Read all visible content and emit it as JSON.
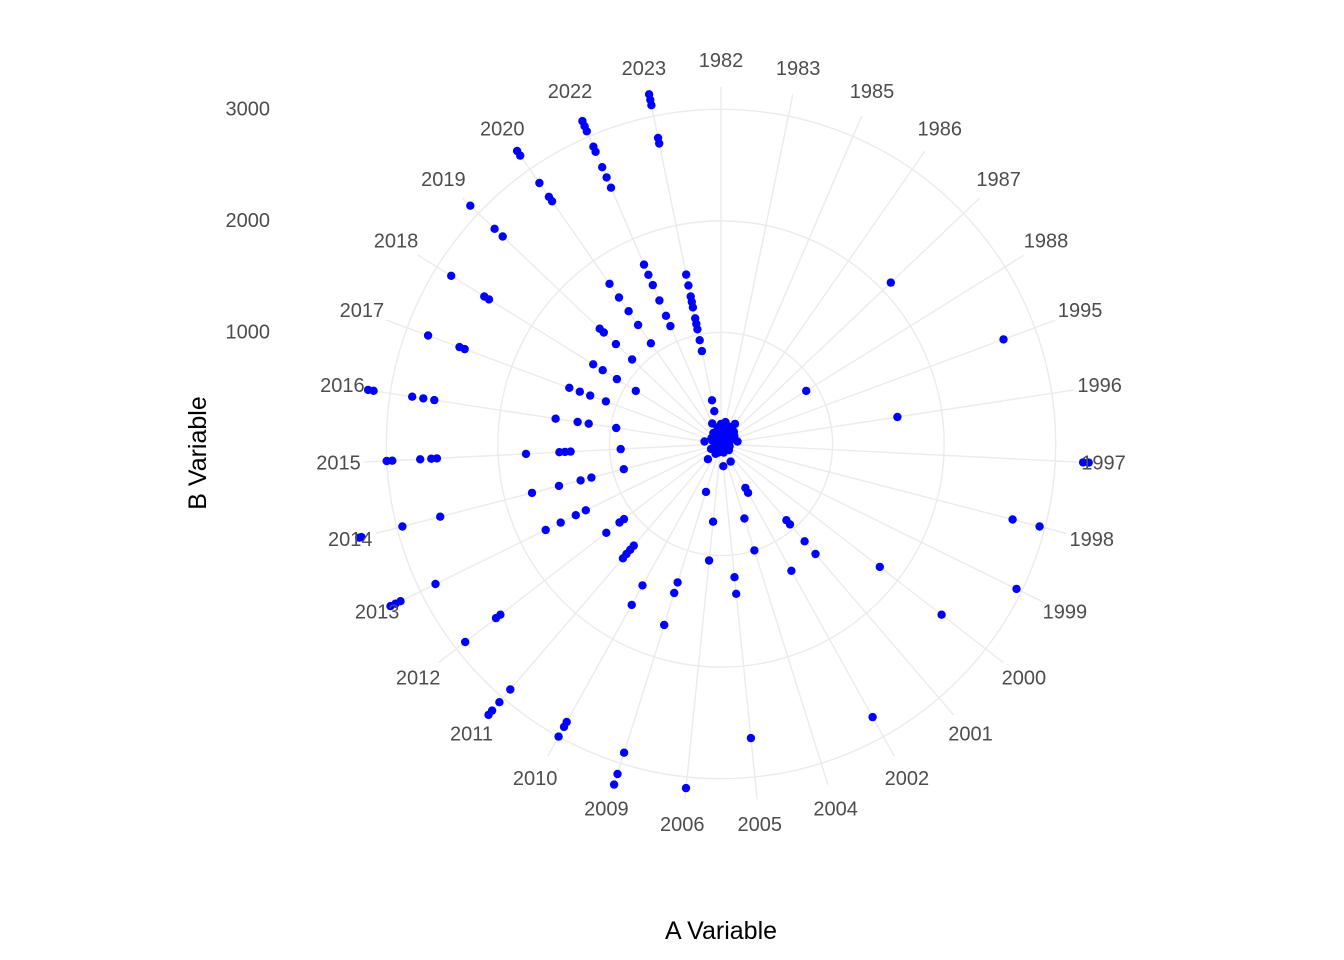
{
  "chart_data": {
    "type": "scatter",
    "coord": "polar",
    "title": "",
    "xlabel": "A Variable",
    "ylabel": "B Variable",
    "r_ticks": [
      1000,
      2000,
      3000
    ],
    "r_max": 3200,
    "grid": true,
    "point_color": "#0000ff",
    "grid_color": "#ebebeb",
    "categories": [
      "1982",
      "1983",
      "1985",
      "1986",
      "1987",
      "1988",
      "1995",
      "1996",
      "1997",
      "1998",
      "1999",
      "2000",
      "2001",
      "2002",
      "2004",
      "2005",
      "2006",
      "2009",
      "2010",
      "2011",
      "2012",
      "2013",
      "2014",
      "2015",
      "2016",
      "2017",
      "2018",
      "2019",
      "2020",
      "2022",
      "2023"
    ],
    "series": [
      {
        "points": [
          [
            "1982",
            50
          ],
          [
            "1982",
            120
          ],
          [
            "1982",
            180
          ],
          [
            "1983",
            60
          ],
          [
            "1983",
            130
          ],
          [
            "1983",
            200
          ],
          [
            "1985",
            40
          ],
          [
            "1985",
            110
          ],
          [
            "1985",
            170
          ],
          [
            "1986",
            80
          ],
          [
            "1986",
            150
          ],
          [
            "1986",
            220
          ],
          [
            "1987",
            2100
          ],
          [
            "1987",
            100
          ],
          [
            "1987",
            160
          ],
          [
            "1988",
            900
          ],
          [
            "1988",
            70
          ],
          [
            "1988",
            140
          ],
          [
            "1995",
            2700
          ],
          [
            "1995",
            30
          ],
          [
            "1995",
            90
          ],
          [
            "1996",
            1600
          ],
          [
            "1996",
            150
          ],
          [
            "1996",
            60
          ],
          [
            "1997",
            3250
          ],
          [
            "1997",
            3300
          ],
          [
            "1997",
            30
          ],
          [
            "1998",
            2700
          ],
          [
            "1998",
            2950
          ],
          [
            "1998",
            80
          ],
          [
            "1999",
            2950
          ],
          [
            "1999",
            30
          ],
          [
            "2000",
            2500
          ],
          [
            "2000",
            1800
          ],
          [
            "2000",
            90
          ],
          [
            "2001",
            950
          ],
          [
            "2001",
            1150
          ],
          [
            "2001",
            900
          ],
          [
            "2001",
            1300
          ],
          [
            "2001",
            30
          ],
          [
            "2002",
            2800
          ],
          [
            "2002",
            1300
          ],
          [
            "2002",
            500
          ],
          [
            "2002",
            450
          ],
          [
            "2002",
            180
          ],
          [
            "2004",
            1000
          ],
          [
            "2004",
            700
          ],
          [
            "2004",
            80
          ],
          [
            "2005",
            2650
          ],
          [
            "2005",
            1200
          ],
          [
            "2005",
            1350
          ],
          [
            "2005",
            200
          ],
          [
            "2005",
            70
          ],
          [
            "2006",
            3100
          ],
          [
            "2006",
            700
          ],
          [
            "2006",
            1050
          ],
          [
            "2006",
            40
          ],
          [
            "2009",
            3200
          ],
          [
            "2009",
            3100
          ],
          [
            "2009",
            2900
          ],
          [
            "2009",
            1400
          ],
          [
            "2009",
            1300
          ],
          [
            "2009",
            1700
          ],
          [
            "2009",
            450
          ],
          [
            "2009",
            80
          ],
          [
            "2010",
            3000
          ],
          [
            "2010",
            2900
          ],
          [
            "2010",
            2850
          ],
          [
            "2010",
            1650
          ],
          [
            "2010",
            1450
          ],
          [
            "2010",
            100
          ],
          [
            "2011",
            3200
          ],
          [
            "2011",
            3150
          ],
          [
            "2011",
            3050
          ],
          [
            "2011",
            2900
          ],
          [
            "2011",
            1250
          ],
          [
            "2011",
            1200
          ],
          [
            "2011",
            1300
          ],
          [
            "2011",
            1350
          ],
          [
            "2011",
            180
          ],
          [
            "2012",
            2900
          ],
          [
            "2012",
            2550
          ],
          [
            "2012",
            2500
          ],
          [
            "2012",
            1100
          ],
          [
            "2012",
            1150
          ],
          [
            "2012",
            1300
          ],
          [
            "2012",
            70
          ],
          [
            "2013",
            3300
          ],
          [
            "2013",
            3250
          ],
          [
            "2013",
            3200
          ],
          [
            "2013",
            2850
          ],
          [
            "2013",
            1750
          ],
          [
            "2013",
            1600
          ],
          [
            "2013",
            1450
          ],
          [
            "2013",
            1350
          ],
          [
            "2013",
            100
          ],
          [
            "2014",
            3350
          ],
          [
            "2014",
            3330
          ],
          [
            "2014",
            2950
          ],
          [
            "2014",
            2600
          ],
          [
            "2014",
            1750
          ],
          [
            "2014",
            1500
          ],
          [
            "2014",
            1300
          ],
          [
            "2014",
            1200
          ],
          [
            "2014",
            900
          ],
          [
            "2014",
            50
          ],
          [
            "2015",
            3000
          ],
          [
            "2015",
            2950
          ],
          [
            "2015",
            2700
          ],
          [
            "2015",
            2600
          ],
          [
            "2015",
            2550
          ],
          [
            "2015",
            1750
          ],
          [
            "2015",
            1450
          ],
          [
            "2015",
            1400
          ],
          [
            "2015",
            1350
          ],
          [
            "2015",
            900
          ],
          [
            "2015",
            40
          ],
          [
            "2016",
            3200
          ],
          [
            "2016",
            3150
          ],
          [
            "2016",
            2800
          ],
          [
            "2016",
            2700
          ],
          [
            "2016",
            2600
          ],
          [
            "2016",
            1500
          ],
          [
            "2016",
            1300
          ],
          [
            "2016",
            1200
          ],
          [
            "2016",
            950
          ],
          [
            "2016",
            150
          ],
          [
            "2017",
            2800
          ],
          [
            "2017",
            2500
          ],
          [
            "2017",
            2450
          ],
          [
            "2017",
            1450
          ],
          [
            "2017",
            1350
          ],
          [
            "2017",
            1250
          ],
          [
            "2017",
            1100
          ],
          [
            "2017",
            80
          ],
          [
            "2018",
            2850
          ],
          [
            "2018",
            2500
          ],
          [
            "2018",
            2450
          ],
          [
            "2018",
            1350
          ],
          [
            "2018",
            1250
          ],
          [
            "2018",
            1100
          ],
          [
            "2018",
            900
          ],
          [
            "2018",
            100
          ],
          [
            "2019",
            3100
          ],
          [
            "2019",
            2800
          ],
          [
            "2019",
            2700
          ],
          [
            "2019",
            1500
          ],
          [
            "2019",
            1450
          ],
          [
            "2019",
            1300
          ],
          [
            "2019",
            1100
          ],
          [
            "2019",
            60
          ],
          [
            "2020",
            3200
          ],
          [
            "2020",
            3150
          ],
          [
            "2020",
            2850
          ],
          [
            "2020",
            2700
          ],
          [
            "2020",
            2650
          ],
          [
            "2020",
            1750
          ],
          [
            "2020",
            1600
          ],
          [
            "2020",
            1450
          ],
          [
            "2020",
            1300
          ],
          [
            "2020",
            1100
          ],
          [
            "2020",
            120
          ],
          [
            "2022",
            3150
          ],
          [
            "2022",
            3100
          ],
          [
            "2022",
            3050
          ],
          [
            "2022",
            2900
          ],
          [
            "2022",
            2850
          ],
          [
            "2022",
            2700
          ],
          [
            "2022",
            2600
          ],
          [
            "2022",
            2500
          ],
          [
            "2022",
            1750
          ],
          [
            "2022",
            1650
          ],
          [
            "2022",
            1550
          ],
          [
            "2022",
            1400
          ],
          [
            "2022",
            1250
          ],
          [
            "2022",
            1150
          ],
          [
            "2022",
            200
          ],
          [
            "2022",
            50
          ],
          [
            "2023",
            3200
          ],
          [
            "2023",
            3150
          ],
          [
            "2023",
            3100
          ],
          [
            "2023",
            2800
          ],
          [
            "2023",
            2750
          ],
          [
            "2023",
            1550
          ],
          [
            "2023",
            1450
          ],
          [
            "2023",
            1350
          ],
          [
            "2023",
            1300
          ],
          [
            "2023",
            1250
          ],
          [
            "2023",
            1150
          ],
          [
            "2023",
            1100
          ],
          [
            "2023",
            1050
          ],
          [
            "2023",
            950
          ],
          [
            "2023",
            850
          ],
          [
            "2023",
            400
          ],
          [
            "2023",
            300
          ],
          [
            "2023",
            150
          ],
          [
            "2023",
            80
          ]
        ]
      }
    ]
  }
}
